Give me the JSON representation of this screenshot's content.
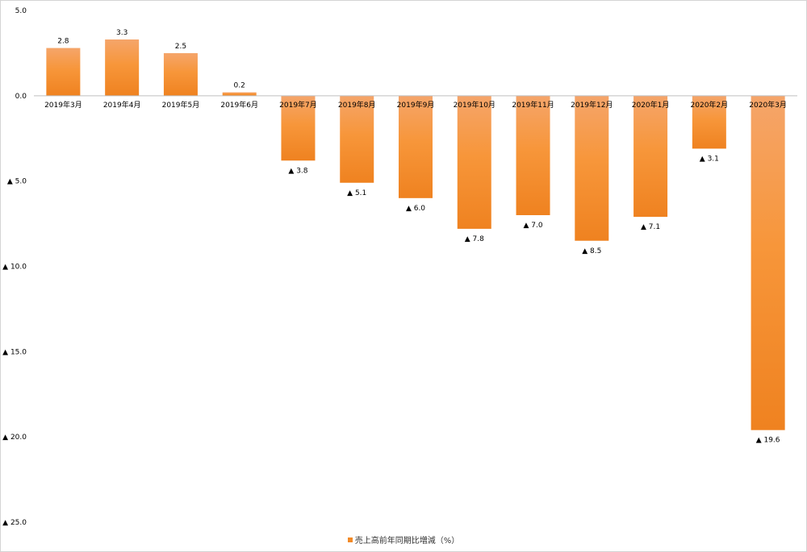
{
  "chart_data": {
    "type": "bar",
    "categories": [
      "2019年3月",
      "2019年4月",
      "2019年5月",
      "2019年6月",
      "2019年7月",
      "2019年8月",
      "2019年9月",
      "2019年10月",
      "2019年11月",
      "2019年12月",
      "2020年1月",
      "2020年2月",
      "2020年3月"
    ],
    "series": [
      {
        "name": "売上高前年同期比増減（%）",
        "values": [
          2.8,
          3.3,
          2.5,
          0.2,
          -3.8,
          -5.1,
          -6.0,
          -7.8,
          -7.0,
          -8.5,
          -7.1,
          -3.1,
          -19.6
        ],
        "data_labels": [
          "2.8",
          "3.3",
          "2.5",
          "0.2",
          "▲ 3.8",
          "▲ 5.1",
          "▲ 6.0",
          "▲ 7.8",
          "▲ 7.0",
          "▲ 8.5",
          "▲ 7.1",
          "▲ 3.1",
          "▲ 19.6"
        ]
      }
    ],
    "y_ticks": [
      5.0,
      0.0,
      -5.0,
      -10.0,
      -15.0,
      -20.0,
      -25.0
    ],
    "y_tick_labels": [
      "5.0",
      "0.0",
      "▲ 5.0",
      "▲ 10.0",
      "▲ 15.0",
      "▲ 20.0",
      "▲ 25.0"
    ],
    "ylim": [
      -25,
      5
    ],
    "grid": false,
    "legend_position": "bottom",
    "colors": {
      "bar_light": "#f5a56a",
      "bar_dark": "#ef8220",
      "axis": "#bfbfbf"
    }
  },
  "legend": {
    "label": "売上高前年同期比増減（%）"
  }
}
